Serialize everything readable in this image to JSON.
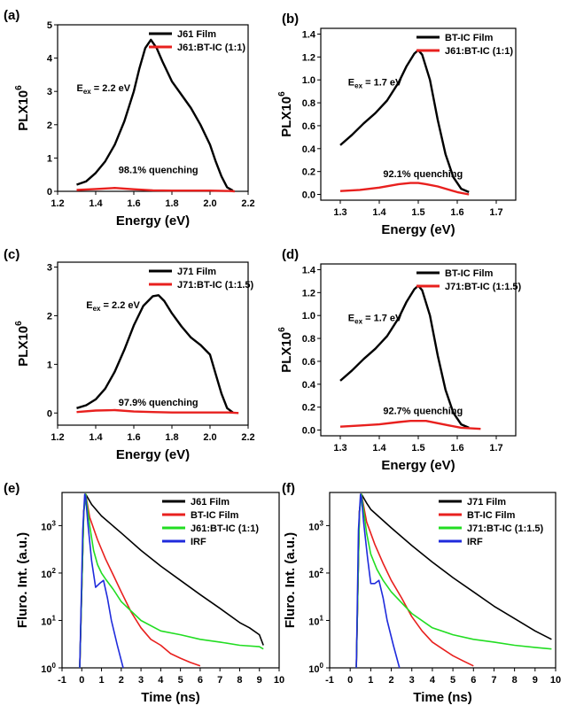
{
  "chart_data": [
    {
      "panel": "(a)",
      "type": "line",
      "xlabel": "Energy (eV)",
      "ylabel": "PLX10^6",
      "xlim": [
        1.2,
        2.2
      ],
      "ylim": [
        0,
        5
      ],
      "xticks": [
        "1.2",
        "1.4",
        "1.6",
        "1.8",
        "2.0",
        "2.2"
      ],
      "xtick_values": [
        1.2,
        1.4,
        1.6,
        1.8,
        2.0,
        2.2
      ],
      "yticks": [
        "0",
        "1",
        "2",
        "3",
        "4",
        "5"
      ],
      "ytick_values": [
        0,
        1,
        2,
        3,
        4,
        5
      ],
      "legend_position": "top-right",
      "annotations": [
        {
          "kind": "excitation",
          "prefix": "E",
          "subscript": "ex",
          "text": "= 2.2 eV",
          "x": 1.3,
          "y": 3.0
        },
        {
          "kind": "plain",
          "text": "98.1% quenching",
          "x": 1.52,
          "y": 0.55
        }
      ],
      "series": [
        {
          "name": "J61 Film",
          "color": "#000000",
          "x": [
            1.3,
            1.35,
            1.4,
            1.45,
            1.5,
            1.55,
            1.6,
            1.63,
            1.66,
            1.69,
            1.72,
            1.75,
            1.8,
            1.85,
            1.9,
            1.95,
            2.0,
            2.03,
            2.06,
            2.09,
            2.12
          ],
          "y": [
            0.2,
            0.3,
            0.55,
            0.9,
            1.4,
            2.1,
            3.0,
            3.7,
            4.3,
            4.55,
            4.3,
            3.9,
            3.3,
            2.9,
            2.5,
            2.0,
            1.4,
            0.9,
            0.45,
            0.12,
            0.02
          ]
        },
        {
          "name": "J61:BT-IC (1:1)",
          "color": "#e8201e",
          "x": [
            1.3,
            1.4,
            1.5,
            1.6,
            1.7,
            1.8,
            1.9,
            2.0,
            2.1,
            2.13
          ],
          "y": [
            0.04,
            0.07,
            0.1,
            0.06,
            0.03,
            0.02,
            0.02,
            0.02,
            0.01,
            0.0
          ]
        }
      ]
    },
    {
      "panel": "(b)",
      "type": "line",
      "xlabel": "Energy (eV)",
      "ylabel": "PLX10^6",
      "xlim": [
        1.25,
        1.75
      ],
      "ylim": [
        -0.05,
        1.45
      ],
      "xticks": [
        "1.3",
        "1.4",
        "1.5",
        "1.6",
        "1.7"
      ],
      "xtick_values": [
        1.3,
        1.4,
        1.5,
        1.6,
        1.7
      ],
      "yticks": [
        "0.0",
        "0.2",
        "0.4",
        "0.6",
        "0.8",
        "1.0",
        "1.2",
        "1.4"
      ],
      "ytick_values": [
        0.0,
        0.2,
        0.4,
        0.6,
        0.8,
        1.0,
        1.2,
        1.4
      ],
      "legend_position": "top-right",
      "annotations": [
        {
          "kind": "excitation",
          "prefix": "E",
          "subscript": "ex",
          "text": "= 1.7 eV",
          "x": 1.32,
          "y": 0.95
        },
        {
          "kind": "plain",
          "text": "92.1% quenching",
          "x": 1.41,
          "y": 0.15
        }
      ],
      "series": [
        {
          "name": "BT-IC Film",
          "color": "#000000",
          "x": [
            1.3,
            1.33,
            1.36,
            1.39,
            1.42,
            1.45,
            1.47,
            1.49,
            1.5,
            1.51,
            1.53,
            1.55,
            1.57,
            1.59,
            1.61,
            1.63
          ],
          "y": [
            0.43,
            0.52,
            0.62,
            0.71,
            0.82,
            0.98,
            1.12,
            1.23,
            1.26,
            1.22,
            1.0,
            0.65,
            0.35,
            0.15,
            0.05,
            0.02
          ]
        },
        {
          "name": "J61:BT-IC (1:1)",
          "color": "#e8201e",
          "x": [
            1.3,
            1.35,
            1.4,
            1.45,
            1.48,
            1.5,
            1.52,
            1.55,
            1.58,
            1.6,
            1.63
          ],
          "y": [
            0.03,
            0.04,
            0.06,
            0.09,
            0.1,
            0.1,
            0.09,
            0.07,
            0.04,
            0.02,
            0.0
          ]
        }
      ]
    },
    {
      "panel": "(c)",
      "type": "line",
      "xlabel": "Energy (eV)",
      "ylabel": "PLX10^6",
      "xlim": [
        1.2,
        2.2
      ],
      "ylim": [
        -0.25,
        3.1
      ],
      "xticks": [
        "1.2",
        "1.4",
        "1.6",
        "1.8",
        "2.0",
        "2.2"
      ],
      "xtick_values": [
        1.2,
        1.4,
        1.6,
        1.8,
        2.0,
        2.2
      ],
      "yticks": [
        "0",
        "1",
        "2",
        "3"
      ],
      "ytick_values": [
        0,
        1,
        2,
        3
      ],
      "legend_position": "top-right",
      "annotations": [
        {
          "kind": "excitation",
          "prefix": "E",
          "subscript": "ex",
          "text": "= 2.2 eV",
          "x": 1.35,
          "y": 2.15
        },
        {
          "kind": "plain",
          "text": "97.9% quenching",
          "x": 1.52,
          "y": 0.15
        }
      ],
      "series": [
        {
          "name": "J71 Film",
          "color": "#000000",
          "x": [
            1.3,
            1.35,
            1.4,
            1.45,
            1.5,
            1.55,
            1.6,
            1.65,
            1.7,
            1.73,
            1.76,
            1.8,
            1.85,
            1.9,
            1.95,
            2.0,
            2.03,
            2.06,
            2.09,
            2.12
          ],
          "y": [
            0.1,
            0.16,
            0.28,
            0.5,
            0.85,
            1.3,
            1.8,
            2.2,
            2.4,
            2.42,
            2.3,
            2.05,
            1.78,
            1.55,
            1.4,
            1.2,
            0.8,
            0.4,
            0.1,
            0.01
          ]
        },
        {
          "name": "J71:BT-IC (1:1.5)",
          "color": "#e8201e",
          "x": [
            1.3,
            1.4,
            1.5,
            1.6,
            1.7,
            1.8,
            1.9,
            2.0,
            2.1,
            2.15
          ],
          "y": [
            0.02,
            0.05,
            0.06,
            0.03,
            0.02,
            0.01,
            0.01,
            0.01,
            0.01,
            0.0
          ]
        }
      ]
    },
    {
      "panel": "(d)",
      "type": "line",
      "xlabel": "Energy (eV)",
      "ylabel": "PLX10^6",
      "xlim": [
        1.25,
        1.75
      ],
      "ylim": [
        -0.05,
        1.45
      ],
      "xticks": [
        "1.3",
        "1.4",
        "1.5",
        "1.6",
        "1.7"
      ],
      "xtick_values": [
        1.3,
        1.4,
        1.5,
        1.6,
        1.7
      ],
      "yticks": [
        "0.0",
        "0.2",
        "0.4",
        "0.6",
        "0.8",
        "1.0",
        "1.2",
        "1.4"
      ],
      "ytick_values": [
        0.0,
        0.2,
        0.4,
        0.6,
        0.8,
        1.0,
        1.2,
        1.4
      ],
      "legend_position": "top-right",
      "annotations": [
        {
          "kind": "excitation",
          "prefix": "E",
          "subscript": "ex",
          "text": "= 1.7 eV",
          "x": 1.32,
          "y": 0.95
        },
        {
          "kind": "plain",
          "text": "92.7% quenching",
          "x": 1.41,
          "y": 0.14
        }
      ],
      "series": [
        {
          "name": "BT-IC Film",
          "color": "#000000",
          "x": [
            1.3,
            1.33,
            1.36,
            1.39,
            1.42,
            1.45,
            1.47,
            1.49,
            1.5,
            1.51,
            1.53,
            1.55,
            1.57,
            1.59,
            1.61,
            1.63
          ],
          "y": [
            0.43,
            0.52,
            0.62,
            0.71,
            0.82,
            0.98,
            1.12,
            1.23,
            1.26,
            1.22,
            1.0,
            0.65,
            0.35,
            0.15,
            0.05,
            0.02
          ]
        },
        {
          "name": "J71:BT-IC (1:1.5)",
          "color": "#e8201e",
          "x": [
            1.3,
            1.35,
            1.4,
            1.45,
            1.48,
            1.5,
            1.52,
            1.55,
            1.58,
            1.61,
            1.66
          ],
          "y": [
            0.03,
            0.04,
            0.05,
            0.07,
            0.08,
            0.08,
            0.08,
            0.06,
            0.04,
            0.02,
            0.01
          ]
        }
      ]
    },
    {
      "panel": "(e)",
      "type": "line",
      "yscale": "log",
      "xlabel": "Time (ns)",
      "ylabel": "Fluro. Int. (a.u.)",
      "xlim": [
        -1,
        10
      ],
      "ylim": [
        1,
        5000
      ],
      "xticks": [
        "-1",
        "0",
        "1",
        "2",
        "3",
        "4",
        "5",
        "6",
        "7",
        "8",
        "9",
        "10"
      ],
      "xtick_values": [
        -1,
        0,
        1,
        2,
        3,
        4,
        5,
        6,
        7,
        8,
        9,
        10
      ],
      "yticks": [
        {
          "base": "10",
          "exp": "0"
        },
        {
          "base": "10",
          "exp": "1"
        },
        {
          "base": "10",
          "exp": "2"
        },
        {
          "base": "10",
          "exp": "3"
        }
      ],
      "ytick_values": [
        1,
        10,
        100,
        1000
      ],
      "legend_position": "top-right",
      "annotations": [],
      "series": [
        {
          "name": "J61 Film",
          "color": "#000000",
          "x": [
            -0.1,
            0.1,
            0.2,
            0.5,
            1,
            2,
            3,
            4,
            5,
            6,
            7,
            8,
            8.5,
            9,
            9.2
          ],
          "y": [
            1,
            2000,
            4600,
            2800,
            1600,
            700,
            300,
            140,
            70,
            35,
            18,
            9,
            7,
            5,
            3
          ]
        },
        {
          "name": "BT-IC Film",
          "color": "#e8201e",
          "x": [
            -0.1,
            0.1,
            0.2,
            0.4,
            0.8,
            1.2,
            1.6,
            2,
            2.5,
            3,
            3.5,
            4,
            4.5,
            5,
            5.5,
            6
          ],
          "y": [
            1,
            2000,
            4600,
            1500,
            500,
            200,
            90,
            40,
            15,
            7,
            4,
            3,
            2,
            1.6,
            1.3,
            1.1
          ]
        },
        {
          "name": "J61:BT-IC (1:1)",
          "color": "#22dd22",
          "x": [
            -0.1,
            0.1,
            0.2,
            0.4,
            0.6,
            0.8,
            1,
            1.2,
            1.6,
            2,
            3,
            4,
            5,
            6,
            7,
            8,
            9,
            9.2
          ],
          "y": [
            1,
            1800,
            4600,
            1000,
            300,
            150,
            100,
            75,
            45,
            25,
            10,
            6,
            5,
            4,
            3.5,
            3,
            2.8,
            2.5
          ]
        },
        {
          "name": "IRF",
          "color": "#1f2bdc",
          "x": [
            -0.1,
            0.05,
            0.15,
            0.2,
            0.3,
            0.5,
            0.7,
            0.9,
            1.1,
            1.3,
            1.5,
            1.8,
            2.1
          ],
          "y": [
            1,
            800,
            4600,
            4000,
            1200,
            180,
            50,
            60,
            70,
            30,
            10,
            3,
            1
          ]
        }
      ]
    },
    {
      "panel": "(f)",
      "type": "line",
      "yscale": "log",
      "xlabel": "Time (ns)",
      "ylabel": "Fluro. Int. (a.u.)",
      "xlim": [
        -1,
        10
      ],
      "ylim": [
        1,
        5000
      ],
      "xticks": [
        "-1",
        "0",
        "1",
        "2",
        "3",
        "4",
        "5",
        "6",
        "7",
        "8",
        "9",
        "10"
      ],
      "xtick_values": [
        -1,
        0,
        1,
        2,
        3,
        4,
        5,
        6,
        7,
        8,
        9,
        10
      ],
      "yticks": [
        {
          "base": "10",
          "exp": "0"
        },
        {
          "base": "10",
          "exp": "1"
        },
        {
          "base": "10",
          "exp": "2"
        },
        {
          "base": "10",
          "exp": "3"
        }
      ],
      "ytick_values": [
        1,
        10,
        100,
        1000
      ],
      "legend_position": "top-right",
      "annotations": [],
      "series": [
        {
          "name": "J71 Film",
          "color": "#000000",
          "x": [
            0.3,
            0.45,
            0.55,
            0.8,
            1,
            2,
            3,
            4,
            5,
            6,
            7,
            8,
            9,
            9.8
          ],
          "y": [
            1,
            2000,
            4600,
            3000,
            2200,
            900,
            380,
            170,
            80,
            40,
            20,
            11,
            6,
            4
          ]
        },
        {
          "name": "BT-IC Film",
          "color": "#e8201e",
          "x": [
            0.3,
            0.45,
            0.55,
            0.8,
            1.2,
            1.6,
            2,
            2.5,
            3,
            3.5,
            4,
            4.5,
            5,
            5.5,
            6
          ],
          "y": [
            1,
            2000,
            4600,
            1200,
            400,
            160,
            70,
            30,
            12,
            6,
            3.5,
            2.5,
            1.8,
            1.4,
            1.1
          ]
        },
        {
          "name": "J71:BT-IC (1:1.5)",
          "color": "#22dd22",
          "x": [
            0.3,
            0.45,
            0.55,
            0.8,
            1,
            1.3,
            1.6,
            2,
            3,
            4,
            5,
            6,
            7,
            8,
            9,
            9.8
          ],
          "y": [
            1,
            1800,
            4600,
            700,
            250,
            120,
            70,
            40,
            14,
            7,
            5,
            4,
            3.5,
            3,
            2.7,
            2.5
          ]
        },
        {
          "name": "IRF",
          "color": "#1f2bdc",
          "x": [
            0.3,
            0.4,
            0.5,
            0.55,
            0.65,
            0.85,
            1,
            1.2,
            1.4,
            1.6,
            1.8,
            2.1,
            2.4
          ],
          "y": [
            1,
            800,
            4600,
            4000,
            1200,
            200,
            60,
            60,
            70,
            30,
            10,
            3,
            1
          ]
        }
      ]
    }
  ]
}
